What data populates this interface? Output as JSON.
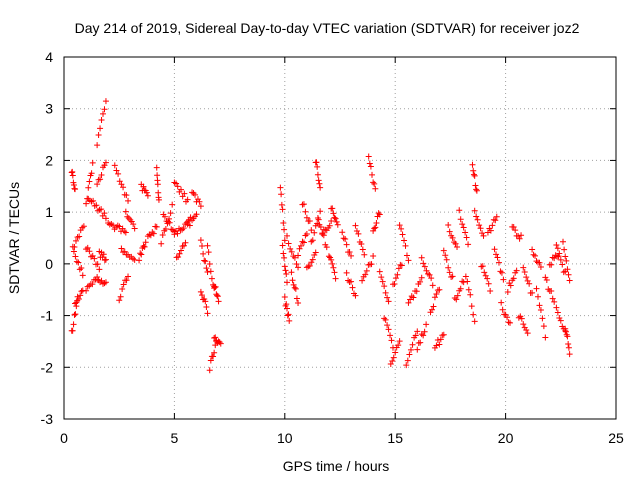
{
  "colors": {
    "series": "#ff0000",
    "grid": "#a0a0a0",
    "axis": "#000000"
  },
  "chart_data": {
    "type": "scatter",
    "title": "Day 214 of 2019, Sidereal Day-to-day VTEC variation (SDTVAR) for receiver joz2",
    "xlabel": "GPS time / hours",
    "ylabel": "SDTVAR / TECUs",
    "xlim": [
      0,
      25
    ],
    "ylim": [
      -3,
      4
    ],
    "xticks": [
      0,
      5,
      10,
      15,
      20,
      25
    ],
    "yticks": [
      -3,
      -2,
      -1,
      0,
      1,
      2,
      3,
      4
    ],
    "xtick_labels": [
      "0",
      "5",
      "10",
      "15",
      "20",
      "25"
    ],
    "ytick_labels": [
      "-3",
      "-2",
      "-1",
      "0",
      "1",
      "2",
      "3",
      "4"
    ],
    "grid": true,
    "marker": "plus",
    "series": [
      {
        "name": "SDTVAR",
        "segments": [
          {
            "x": [
              0.35,
              0.6
            ],
            "y": [
              -1.35,
              -0.7
            ]
          },
          {
            "x": [
              0.35,
              0.5
            ],
            "y": [
              1.8,
              1.4
            ]
          },
          {
            "x": [
              0.4,
              0.9
            ],
            "y": [
              0.3,
              0.75
            ]
          },
          {
            "x": [
              0.45,
              0.85
            ],
            "y": [
              0.2,
              -0.2
            ]
          },
          {
            "x": [
              0.5,
              0.85
            ],
            "y": [
              -0.75,
              -0.55
            ]
          },
          {
            "x": [
              1.0,
              1.5
            ],
            "y": [
              -0.5,
              -0.25
            ]
          },
          {
            "x": [
              1.0,
              1.3
            ],
            "y": [
              1.2,
              1.9
            ]
          },
          {
            "x": [
              1.0,
              1.6
            ],
            "y": [
              0.3,
              -0.05
            ]
          },
          {
            "x": [
              1.5,
              1.9
            ],
            "y": [
              2.3,
              3.2
            ]
          },
          {
            "x": [
              1.5,
              1.9
            ],
            "y": [
              1.5,
              2.0
            ]
          },
          {
            "x": [
              1.1,
              1.9
            ],
            "y": [
              1.3,
              0.9
            ]
          },
          {
            "x": [
              1.5,
              1.9
            ],
            "y": [
              -0.3,
              -0.35
            ]
          },
          {
            "x": [
              1.6,
              1.9
            ],
            "y": [
              0.2,
              0.1
            ]
          },
          {
            "x": [
              2.0,
              2.8
            ],
            "y": [
              0.8,
              0.6
            ]
          },
          {
            "x": [
              2.3,
              2.9
            ],
            "y": [
              1.9,
              1.2
            ]
          },
          {
            "x": [
              2.5,
              2.9
            ],
            "y": [
              -0.7,
              -0.2
            ]
          },
          {
            "x": [
              2.6,
              3.2
            ],
            "y": [
              0.3,
              0.1
            ]
          },
          {
            "x": [
              2.8,
              3.2
            ],
            "y": [
              1.0,
              0.7
            ]
          },
          {
            "x": [
              3.4,
              3.7
            ],
            "y": [
              0.1,
              0.4
            ]
          },
          {
            "x": [
              3.5,
              3.8
            ],
            "y": [
              1.5,
              1.3
            ]
          },
          {
            "x": [
              3.8,
              4.2
            ],
            "y": [
              0.5,
              0.7
            ]
          },
          {
            "x": [
              4.2,
              4.3
            ],
            "y": [
              1.8,
              1.2
            ]
          },
          {
            "x": [
              4.4,
              4.9
            ],
            "y": [
              0.4,
              1.1
            ]
          },
          {
            "x": [
              4.5,
              5.0
            ],
            "y": [
              1.0,
              0.6
            ]
          },
          {
            "x": [
              5.0,
              5.6
            ],
            "y": [
              1.6,
              1.2
            ]
          },
          {
            "x": [
              5.0,
              5.7
            ],
            "y": [
              0.6,
              0.8
            ]
          },
          {
            "x": [
              5.1,
              5.5
            ],
            "y": [
              0.1,
              0.4
            ]
          },
          {
            "x": [
              5.6,
              6.0
            ],
            "y": [
              0.8,
              1.0
            ]
          },
          {
            "x": [
              5.8,
              6.2
            ],
            "y": [
              1.4,
              1.1
            ]
          },
          {
            "x": [
              6.2,
              6.5
            ],
            "y": [
              0.4,
              -0.2
            ]
          },
          {
            "x": [
              6.2,
              6.5
            ],
            "y": [
              -0.5,
              -0.9
            ]
          },
          {
            "x": [
              6.5,
              6.8
            ],
            "y": [
              0.3,
              -0.5
            ]
          },
          {
            "x": [
              6.6,
              6.9
            ],
            "y": [
              -2.0,
              -1.5
            ]
          },
          {
            "x": [
              6.8,
              7.1
            ],
            "y": [
              -1.4,
              -1.6
            ]
          },
          {
            "x": [
              6.8,
              7.0
            ],
            "y": [
              -0.4,
              -0.7
            ]
          },
          {
            "x": [
              9.8,
              10.0
            ],
            "y": [
              1.5,
              0.5
            ]
          },
          {
            "x": [
              9.9,
              10.1
            ],
            "y": [
              0.3,
              -0.3
            ]
          },
          {
            "x": [
              10.0,
              10.2
            ],
            "y": [
              -0.7,
              -1.1
            ]
          },
          {
            "x": [
              10.1,
              10.6
            ],
            "y": [
              0.5,
              -0.1
            ]
          },
          {
            "x": [
              10.3,
              10.6
            ],
            "y": [
              -0.2,
              -0.7
            ]
          },
          {
            "x": [
              10.6,
              11.0
            ],
            "y": [
              0.2,
              0.6
            ]
          },
          {
            "x": [
              10.8,
              11.2
            ],
            "y": [
              1.2,
              0.7
            ]
          },
          {
            "x": [
              11.0,
              11.4
            ],
            "y": [
              -0.1,
              0.2
            ]
          },
          {
            "x": [
              11.2,
              11.6
            ],
            "y": [
              0.4,
              1.0
            ]
          },
          {
            "x": [
              11.4,
              11.6
            ],
            "y": [
              2.0,
              1.5
            ]
          },
          {
            "x": [
              11.5,
              11.9
            ],
            "y": [
              0.9,
              0.3
            ]
          },
          {
            "x": [
              11.7,
              12.1
            ],
            "y": [
              0.6,
              0.8
            ]
          },
          {
            "x": [
              12.0,
              12.3
            ],
            "y": [
              0.2,
              -0.3
            ]
          },
          {
            "x": [
              12.1,
              12.4
            ],
            "y": [
              1.1,
              0.7
            ]
          },
          {
            "x": [
              12.6,
              13.0
            ],
            "y": [
              0.6,
              0.1
            ]
          },
          {
            "x": [
              12.8,
              13.2
            ],
            "y": [
              -0.2,
              -0.6
            ]
          },
          {
            "x": [
              13.2,
              13.6
            ],
            "y": [
              0.7,
              0.2
            ]
          },
          {
            "x": [
              13.5,
              14.0
            ],
            "y": [
              -0.3,
              0.1
            ]
          },
          {
            "x": [
              13.8,
              14.1
            ],
            "y": [
              2.1,
              1.4
            ]
          },
          {
            "x": [
              14.0,
              14.3
            ],
            "y": [
              0.6,
              1.0
            ]
          },
          {
            "x": [
              14.3,
              14.7
            ],
            "y": [
              -0.2,
              -0.7
            ]
          },
          {
            "x": [
              14.5,
              14.9
            ],
            "y": [
              -1.0,
              -1.6
            ]
          },
          {
            "x": [
              14.8,
              15.2
            ],
            "y": [
              -1.9,
              -1.5
            ]
          },
          {
            "x": [
              14.9,
              15.3
            ],
            "y": [
              -0.4,
              0.0
            ]
          },
          {
            "x": [
              15.2,
              15.6
            ],
            "y": [
              0.8,
              0.1
            ]
          },
          {
            "x": [
              15.5,
              16.0
            ],
            "y": [
              -1.9,
              -1.3
            ]
          },
          {
            "x": [
              15.6,
              16.2
            ],
            "y": [
              -0.8,
              -0.3
            ]
          },
          {
            "x": [
              16.0,
              16.4
            ],
            "y": [
              -1.6,
              -1.2
            ]
          },
          {
            "x": [
              16.2,
              16.7
            ],
            "y": [
              0.1,
              -0.4
            ]
          },
          {
            "x": [
              16.6,
              17.0
            ],
            "y": [
              -0.9,
              -0.5
            ]
          },
          {
            "x": [
              16.8,
              17.2
            ],
            "y": [
              -1.6,
              -1.4
            ]
          },
          {
            "x": [
              17.2,
              17.6
            ],
            "y": [
              0.2,
              -0.3
            ]
          },
          {
            "x": [
              17.4,
              17.8
            ],
            "y": [
              0.7,
              0.3
            ]
          },
          {
            "x": [
              17.7,
              18.1
            ],
            "y": [
              -0.7,
              -0.3
            ]
          },
          {
            "x": [
              17.9,
              18.3
            ],
            "y": [
              1.0,
              0.4
            ]
          },
          {
            "x": [
              18.2,
              18.6
            ],
            "y": [
              -0.2,
              -1.1
            ]
          },
          {
            "x": [
              18.5,
              18.7
            ],
            "y": [
              1.9,
              1.4
            ]
          },
          {
            "x": [
              18.6,
              19.0
            ],
            "y": [
              1.0,
              0.5
            ]
          },
          {
            "x": [
              18.9,
              19.3
            ],
            "y": [
              0.0,
              -0.5
            ]
          },
          {
            "x": [
              19.2,
              19.6
            ],
            "y": [
              0.6,
              0.9
            ]
          },
          {
            "x": [
              19.5,
              19.9
            ],
            "y": [
              0.3,
              -0.3
            ]
          },
          {
            "x": [
              19.8,
              20.2
            ],
            "y": [
              -0.8,
              -1.2
            ]
          },
          {
            "x": [
              20.1,
              20.5
            ],
            "y": [
              -0.5,
              -0.1
            ]
          },
          {
            "x": [
              20.3,
              20.7
            ],
            "y": [
              0.7,
              0.5
            ]
          },
          {
            "x": [
              20.6,
              21.0
            ],
            "y": [
              -1.0,
              -1.3
            ]
          },
          {
            "x": [
              20.8,
              21.2
            ],
            "y": [
              -0.1,
              -0.6
            ]
          },
          {
            "x": [
              21.2,
              21.6
            ],
            "y": [
              0.3,
              -0.1
            ]
          },
          {
            "x": [
              21.4,
              21.8
            ],
            "y": [
              -0.5,
              -1.4
            ]
          },
          {
            "x": [
              21.8,
              22.2
            ],
            "y": [
              -0.3,
              -0.7
            ]
          },
          {
            "x": [
              22.0,
              22.4
            ],
            "y": [
              0.0,
              0.2
            ]
          },
          {
            "x": [
              22.3,
              22.7
            ],
            "y": [
              0.4,
              -0.2
            ]
          },
          {
            "x": [
              22.3,
              22.7
            ],
            "y": [
              -0.9,
              -1.3
            ]
          },
          {
            "x": [
              22.6,
              22.9
            ],
            "y": [
              0.4,
              -0.3
            ]
          },
          {
            "x": [
              22.7,
              22.9
            ],
            "y": [
              -1.2,
              -1.7
            ]
          }
        ]
      }
    ]
  }
}
